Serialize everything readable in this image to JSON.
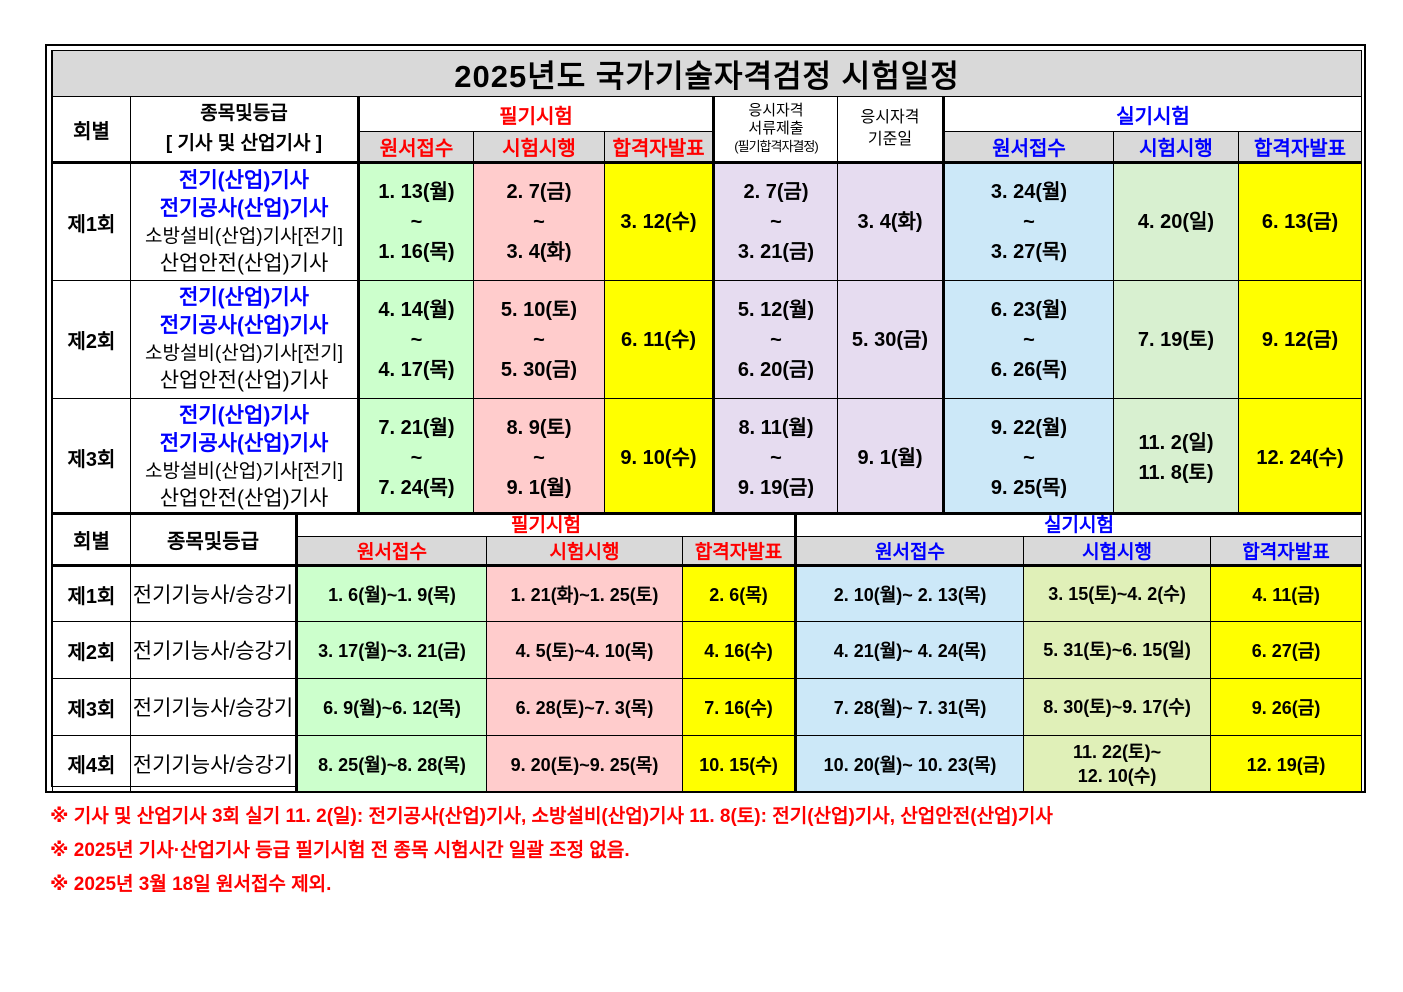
{
  "title": "2025년도 국가기술자격검정 시험일정",
  "table1": {
    "hdr_round": "회별",
    "hdr_grade_line1": "종목및등급",
    "hdr_grade_line2": "[ 기사 및 산업기사 ]",
    "hdr_written": "필기시험",
    "hdr_docs_line1": "응시자격",
    "hdr_docs_line2": "서류제출",
    "hdr_docs_line3": "(필기합격자결정)",
    "hdr_base_line1": "응시자격",
    "hdr_base_line2": "기준일",
    "hdr_practical": "실기시험",
    "sub_apply": "원서접수",
    "sub_exam": "시험시행",
    "sub_result": "합격자발표",
    "items": [
      "전기(산업)기사",
      "전기공사(산업)기사",
      "소방설비(산업)기사[전기]",
      "산업안전(산업)기사"
    ],
    "tilde": "~",
    "rows": [
      {
        "round": "제1회",
        "w_apply_start": "1. 13(월)",
        "w_apply_end": "1. 16(목)",
        "w_exam_start": "2. 7(금)",
        "w_exam_end": "3. 4(화)",
        "w_result": "3. 12(수)",
        "docs_start": "2. 7(금)",
        "docs_end": "3. 21(금)",
        "base": "3. 4(화)",
        "p_apply_start": "3. 24(월)",
        "p_apply_end": "3. 27(목)",
        "p_exam_1": "4. 20(일)",
        "p_exam_2": "",
        "p_result": "6. 13(금)"
      },
      {
        "round": "제2회",
        "w_apply_start": "4. 14(월)",
        "w_apply_end": "4. 17(목)",
        "w_exam_start": "5. 10(토)",
        "w_exam_end": "5. 30(금)",
        "w_result": "6. 11(수)",
        "docs_start": "5. 12(월)",
        "docs_end": "6. 20(금)",
        "base": "5. 30(금)",
        "p_apply_start": "6. 23(월)",
        "p_apply_end": "6. 26(목)",
        "p_exam_1": "7. 19(토)",
        "p_exam_2": "",
        "p_result": "9. 12(금)"
      },
      {
        "round": "제3회",
        "w_apply_start": "7. 21(월)",
        "w_apply_end": "7. 24(목)",
        "w_exam_start": "8. 9(토)",
        "w_exam_end": "9. 1(월)",
        "w_result": "9. 10(수)",
        "docs_start": "8. 11(월)",
        "docs_end": "9. 19(금)",
        "base": "9. 1(월)",
        "p_apply_start": "9. 22(월)",
        "p_apply_end": "9. 25(목)",
        "p_exam_1": "11. 2(일)",
        "p_exam_2": "11. 8(토)",
        "p_result": "12. 24(수)"
      }
    ]
  },
  "table2": {
    "hdr_round": "회별",
    "hdr_grade": "종목및등급",
    "hdr_written": "필기시험",
    "hdr_practical": "실기시험",
    "sub_apply": "원서접수",
    "sub_exam": "시험시행",
    "sub_result": "합격자발표",
    "rows": [
      {
        "round": "제1회",
        "item": "전기기능사/승강기",
        "w_apply": "1. 6(월)~1. 9(목)",
        "w_exam": "1. 21(화)~1. 25(토)",
        "w_result": "2. 6(목)",
        "p_apply": "2. 10(월)~ 2. 13(목)",
        "p_exam_1": "3. 15(토)~4. 2(수)",
        "p_exam_2": "",
        "p_result": "4. 11(금)"
      },
      {
        "round": "제2회",
        "item": "전기기능사/승강기",
        "w_apply": "3. 17(월)~3. 21(금)",
        "w_exam": "4. 5(토)~4. 10(목)",
        "w_result": "4. 16(수)",
        "p_apply": "4. 21(월)~ 4. 24(목)",
        "p_exam_1": "5. 31(토)~6. 15(일)",
        "p_exam_2": "",
        "p_result": "6. 27(금)"
      },
      {
        "round": "제3회",
        "item": "전기기능사/승강기",
        "w_apply": "6. 9(월)~6. 12(목)",
        "w_exam": "6. 28(토)~7. 3(목)",
        "w_result": "7. 16(수)",
        "p_apply": "7. 28(월)~ 7. 31(목)",
        "p_exam_1": "8. 30(토)~9. 17(수)",
        "p_exam_2": "",
        "p_result": "9. 26(금)"
      },
      {
        "round": "제4회",
        "item": "전기기능사/승강기",
        "w_apply": "8. 25(월)~8. 28(목)",
        "w_exam": "9. 20(토)~9. 25(목)",
        "w_result": "10. 15(수)",
        "p_apply": "10. 20(월)~ 10. 23(목)",
        "p_exam_1": "11. 22(토)~",
        "p_exam_2": "12. 10(수)",
        "p_result": "12. 19(금)"
      }
    ]
  },
  "notes": [
    "※ 기사 및 산업기사 3회 실기 11. 2(일): 전기공사(산업)기사, 소방설비(산업)기사 11. 8(토): 전기(산업)기사, 산업안전(산업)기사",
    "※ 2025년 기사·산업기사 등급 필기시험 전 종목 시험시간 일괄 조정 없음.",
    "※ 2025년 3월 18일 원서접수 제외."
  ],
  "colors": {
    "green": "#ccffcc",
    "pink": "#ffcccc",
    "yellow": "#ffff00",
    "lavender": "#e6dcf0",
    "blue": "#cce8f8",
    "light_green": "#d8f0d0",
    "lime": "#e0f0b8",
    "header_gray": "#d9d9d9",
    "red_text": "#ff0000",
    "blue_text": "#0000ff"
  }
}
